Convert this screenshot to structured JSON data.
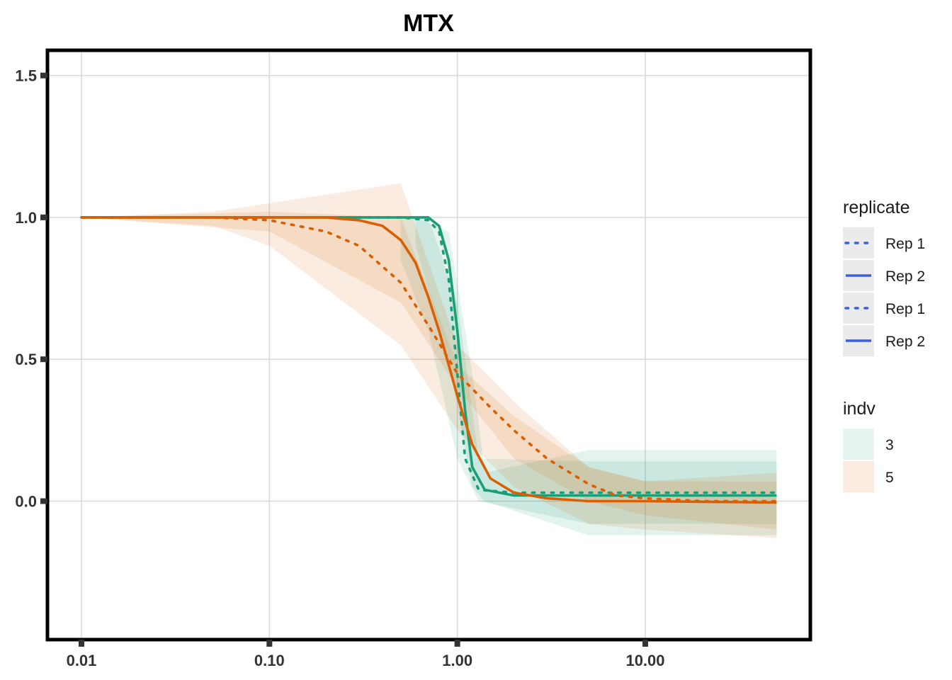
{
  "chart_data": {
    "type": "line",
    "title": "MTX",
    "xlabel": "",
    "ylabel": "",
    "x_scale": "log10",
    "xlim": [
      0.01,
      50
    ],
    "ylim": [
      -0.5,
      1.6
    ],
    "x_ticks": [
      0.01,
      0.1,
      1,
      10
    ],
    "x_tick_labels": [
      "0.01",
      "0.10",
      "1.00",
      "10.00"
    ],
    "y_ticks": [
      0,
      0.5,
      1,
      1.5
    ],
    "y_tick_labels": [
      "0.0",
      "0.5",
      "1.0",
      "1.5"
    ],
    "grid": true,
    "legend_placement": "right",
    "colors": {
      "indv_3": "#1b9e77",
      "indv_5": "#d95f02",
      "legend_line": "#3a5fe0",
      "grid": "#d9d9d9",
      "frame": "#000000"
    },
    "series": [
      {
        "name": "3",
        "replicate": "Rep 1",
        "linetype": "dotted",
        "x": [
          0.01,
          0.1,
          0.5,
          0.7,
          0.8,
          0.9,
          1.0,
          1.1,
          1.3,
          2,
          5,
          10,
          50
        ],
        "y": [
          1.0,
          1.0,
          1.0,
          0.99,
          0.95,
          0.78,
          0.45,
          0.15,
          0.04,
          0.03,
          0.03,
          0.03,
          0.03
        ]
      },
      {
        "name": "3",
        "replicate": "Rep 2",
        "linetype": "solid",
        "x": [
          0.01,
          0.1,
          0.5,
          0.7,
          0.8,
          0.9,
          1.0,
          1.1,
          1.2,
          1.4,
          2,
          5,
          10,
          50
        ],
        "y": [
          1.0,
          1.0,
          1.0,
          1.0,
          0.97,
          0.85,
          0.6,
          0.32,
          0.12,
          0.04,
          0.02,
          0.02,
          0.02,
          0.02
        ]
      },
      {
        "name": "5",
        "replicate": "Rep 1",
        "linetype": "dotted",
        "x": [
          0.01,
          0.05,
          0.1,
          0.2,
          0.3,
          0.5,
          0.7,
          1.0,
          1.5,
          2,
          3,
          5,
          7,
          10,
          20,
          50
        ],
        "y": [
          1.0,
          1.0,
          0.99,
          0.95,
          0.9,
          0.77,
          0.62,
          0.45,
          0.33,
          0.25,
          0.15,
          0.06,
          0.02,
          0.01,
          0.0,
          0.0
        ]
      },
      {
        "name": "5",
        "replicate": "Rep 2",
        "linetype": "solid",
        "x": [
          0.01,
          0.1,
          0.2,
          0.3,
          0.4,
          0.5,
          0.6,
          0.7,
          0.8,
          0.9,
          1.0,
          1.2,
          1.5,
          2,
          3,
          5,
          10,
          50
        ],
        "y": [
          1.0,
          1.0,
          1.0,
          0.99,
          0.97,
          0.92,
          0.84,
          0.72,
          0.6,
          0.48,
          0.37,
          0.2,
          0.08,
          0.03,
          0.01,
          0.0,
          0.0,
          -0.005
        ]
      }
    ],
    "ribbons": [
      {
        "indv": "3",
        "x": [
          0.5,
          0.7,
          1.0,
          1.3,
          5,
          50
        ],
        "lower": [
          0.85,
          0.6,
          0.15,
          0.0,
          -0.08,
          -0.08
        ],
        "upper": [
          1.0,
          1.0,
          0.7,
          0.15,
          0.14,
          0.14
        ]
      },
      {
        "indv": "3",
        "x": [
          0.6,
          0.9,
          1.2,
          1.4,
          5,
          50
        ],
        "lower": [
          0.9,
          0.5,
          0.05,
          0.0,
          -0.12,
          -0.12
        ],
        "upper": [
          1.0,
          0.95,
          0.45,
          0.1,
          0.18,
          0.18
        ]
      },
      {
        "indv": "5",
        "x": [
          0.01,
          0.05,
          0.1,
          0.5,
          1.0,
          2,
          5,
          10,
          50
        ],
        "lower": [
          1.0,
          0.97,
          0.9,
          0.55,
          0.25,
          0.05,
          -0.08,
          -0.1,
          -0.13
        ],
        "upper": [
          1.0,
          1.02,
          1.05,
          1.12,
          0.55,
          0.35,
          0.12,
          0.07,
          0.07
        ]
      },
      {
        "indv": "5",
        "x": [
          0.01,
          0.1,
          0.5,
          1.0,
          2,
          5,
          10,
          50
        ],
        "lower": [
          1.0,
          0.95,
          0.7,
          0.4,
          0.15,
          0.0,
          -0.05,
          -0.1
        ],
        "upper": [
          1.0,
          1.02,
          1.0,
          0.48,
          0.3,
          0.12,
          0.07,
          0.1
        ]
      }
    ]
  },
  "legend": {
    "replicate_title": "replicate",
    "replicate_items": [
      {
        "label": "Rep 1",
        "linetype": "dotted"
      },
      {
        "label": "Rep 2",
        "linetype": "solid"
      },
      {
        "label": "Rep 1",
        "linetype": "dotted"
      },
      {
        "label": "Rep 2",
        "linetype": "solid"
      }
    ],
    "indv_title": "indv",
    "indv_items": [
      {
        "label": "3",
        "fill": "#e6f4ef"
      },
      {
        "label": "5",
        "fill": "#fbebe0"
      }
    ]
  }
}
